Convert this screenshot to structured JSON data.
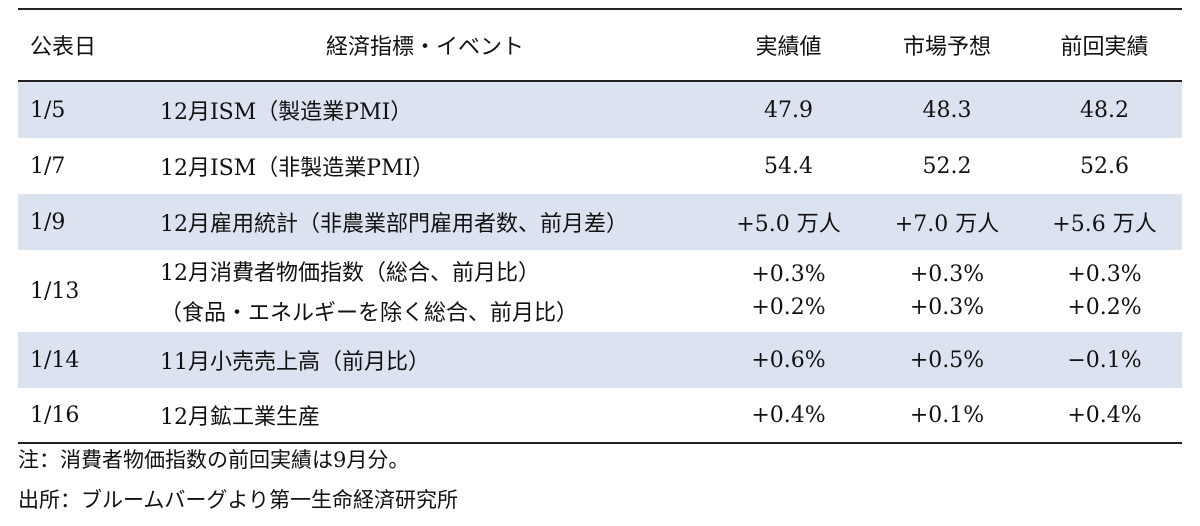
{
  "table": {
    "headers": {
      "date": "公表日",
      "event": "経済指標・イベント",
      "actual": "実績値",
      "forecast": "市場予想",
      "previous": "前回実績"
    },
    "rows": [
      {
        "date": "1/5",
        "event": [
          "12月ISM（製造業PMI）"
        ],
        "actual": [
          "47.9"
        ],
        "forecast": [
          "48.3"
        ],
        "previous": [
          "48.2"
        ]
      },
      {
        "date": "1/7",
        "event": [
          "12月ISM（非製造業PMI）"
        ],
        "actual": [
          "54.4"
        ],
        "forecast": [
          "52.2"
        ],
        "previous": [
          "52.6"
        ]
      },
      {
        "date": "1/9",
        "event": [
          "12月雇用統計（非農業部門雇用者数、前月差）"
        ],
        "actual": [
          "+5.0 万人"
        ],
        "forecast": [
          "+7.0 万人"
        ],
        "previous": [
          "+5.6 万人"
        ]
      },
      {
        "date": "1/13",
        "event": [
          "12月消費者物価指数（総合、前月比）",
          "（食品・エネルギーを除く総合、前月比）"
        ],
        "actual": [
          "+0.3%",
          "+0.2%"
        ],
        "forecast": [
          "+0.3%",
          "+0.3%"
        ],
        "previous": [
          "+0.3%",
          "+0.2%"
        ]
      },
      {
        "date": "1/14",
        "event": [
          "11月小売売上高（前月比）"
        ],
        "actual": [
          "+0.6%"
        ],
        "forecast": [
          "+0.5%"
        ],
        "previous": [
          "−0.1%"
        ]
      },
      {
        "date": "1/16",
        "event": [
          "12月鉱工業生産"
        ],
        "actual": [
          "+0.4%"
        ],
        "forecast": [
          "+0.1%"
        ],
        "previous": [
          "+0.4%"
        ]
      }
    ]
  },
  "notes": {
    "note": "注：消費者物価指数の前回実績は9月分。",
    "source": "出所：ブルームバーグより第一生命経済研究所"
  },
  "colors": {
    "shaded_row": "#dce3f0",
    "rule": "#222222"
  }
}
